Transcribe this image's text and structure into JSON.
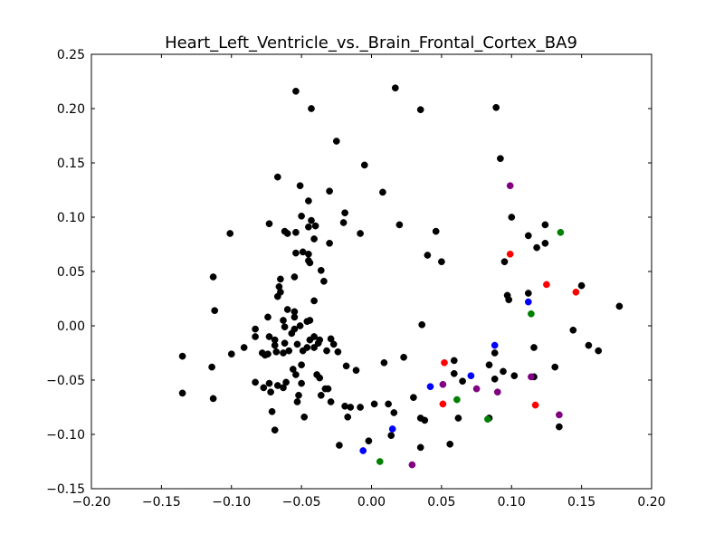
{
  "chart_data": {
    "type": "scatter",
    "title": "Heart_Left_Ventricle_vs._Brain_Frontal_Cortex_BA9",
    "xlabel": "",
    "ylabel": "",
    "xlim": [
      -0.2,
      0.2
    ],
    "ylim": [
      -0.15,
      0.25
    ],
    "x_ticks": [
      "−0.20",
      "−0.15",
      "−0.10",
      "−0.05",
      "0.00",
      "0.05",
      "0.10",
      "0.15",
      "0.20"
    ],
    "x_tick_values": [
      -0.2,
      -0.15,
      -0.1,
      -0.05,
      0.0,
      0.05,
      0.1,
      0.15,
      0.2
    ],
    "y_ticks": [
      "0.25",
      "0.20",
      "0.15",
      "0.10",
      "0.05",
      "0.00",
      "−0.05",
      "−0.10",
      "−0.15"
    ],
    "y_tick_values": [
      0.25,
      0.2,
      0.15,
      0.1,
      0.05,
      0.0,
      -0.05,
      -0.1,
      -0.15
    ],
    "grid": false,
    "series": [
      {
        "color": "#000000",
        "points": [
          [
            -0.054,
            0.216
          ],
          [
            0.017,
            0.219
          ],
          [
            -0.043,
            0.2
          ],
          [
            0.035,
            0.199
          ],
          [
            0.089,
            0.201
          ],
          [
            -0.025,
            0.17
          ],
          [
            0.092,
            0.154
          ],
          [
            -0.005,
            0.148
          ],
          [
            -0.067,
            0.137
          ],
          [
            -0.051,
            0.129
          ],
          [
            -0.03,
            0.124
          ],
          [
            0.008,
            0.123
          ],
          [
            -0.045,
            0.115
          ],
          [
            -0.019,
            0.104
          ],
          [
            -0.05,
            0.101
          ],
          [
            -0.101,
            0.085
          ],
          [
            -0.073,
            0.094
          ],
          [
            -0.043,
            0.097
          ],
          [
            -0.04,
            0.092
          ],
          [
            -0.02,
            0.095
          ],
          [
            0.02,
            0.093
          ],
          [
            0.1,
            0.1
          ],
          [
            0.124,
            0.093
          ],
          [
            -0.062,
            0.087
          ],
          [
            -0.06,
            0.085
          ],
          [
            -0.054,
            0.086
          ],
          [
            -0.045,
            0.091
          ],
          [
            -0.041,
            0.08
          ],
          [
            -0.03,
            0.076
          ],
          [
            -0.008,
            0.085
          ],
          [
            0.046,
            0.087
          ],
          [
            0.112,
            0.083
          ],
          [
            0.118,
            0.072
          ],
          [
            0.124,
            0.076
          ],
          [
            -0.054,
            0.067
          ],
          [
            -0.049,
            0.068
          ],
          [
            -0.045,
            0.066
          ],
          [
            -0.045,
            0.06
          ],
          [
            -0.044,
            0.058
          ],
          [
            0.04,
            0.065
          ],
          [
            0.05,
            0.059
          ],
          [
            0.095,
            0.059
          ],
          [
            -0.036,
            0.051
          ],
          [
            -0.113,
            0.045
          ],
          [
            -0.055,
            0.045
          ],
          [
            -0.065,
            0.043
          ],
          [
            -0.034,
            0.041
          ],
          [
            0.15,
            0.037
          ],
          [
            -0.066,
            0.036
          ],
          [
            -0.067,
            0.027
          ],
          [
            -0.065,
            0.031
          ],
          [
            -0.041,
            0.023
          ],
          [
            0.097,
            0.028
          ],
          [
            0.098,
            0.024
          ],
          [
            0.112,
            0.03
          ],
          [
            -0.112,
            0.014
          ],
          [
            -0.06,
            0.015
          ],
          [
            -0.055,
            0.013
          ],
          [
            0.177,
            0.018
          ],
          [
            -0.074,
            0.008
          ],
          [
            -0.063,
            0.005
          ],
          [
            -0.055,
            0.008
          ],
          [
            -0.046,
            0.004
          ],
          [
            -0.044,
            0.005
          ],
          [
            -0.051,
            0.0
          ],
          [
            0.036,
            0.001
          ],
          [
            -0.083,
            -0.003
          ],
          [
            -0.062,
            -0.001
          ],
          [
            -0.055,
            -0.003
          ],
          [
            -0.083,
            -0.01
          ],
          [
            -0.073,
            -0.01
          ],
          [
            -0.069,
            -0.013
          ],
          [
            -0.057,
            -0.007
          ],
          [
            -0.044,
            -0.013
          ],
          [
            -0.041,
            -0.01
          ],
          [
            -0.037,
            -0.013
          ],
          [
            0.144,
            -0.004
          ],
          [
            -0.069,
            -0.018
          ],
          [
            -0.062,
            -0.016
          ],
          [
            -0.053,
            -0.017
          ],
          [
            -0.041,
            -0.02
          ],
          [
            -0.038,
            -0.016
          ],
          [
            -0.029,
            -0.012
          ],
          [
            -0.027,
            -0.017
          ],
          [
            -0.091,
            -0.02
          ],
          [
            0.116,
            -0.02
          ],
          [
            0.155,
            -0.018
          ],
          [
            0.162,
            -0.023
          ],
          [
            -0.135,
            -0.028
          ],
          [
            -0.1,
            -0.026
          ],
          [
            -0.078,
            -0.025
          ],
          [
            -0.074,
            -0.026
          ],
          [
            -0.068,
            -0.024
          ],
          [
            -0.063,
            -0.025
          ],
          [
            -0.059,
            -0.023
          ],
          [
            -0.049,
            -0.023
          ],
          [
            -0.046,
            -0.02
          ],
          [
            -0.032,
            -0.023
          ],
          [
            -0.024,
            -0.024
          ],
          [
            -0.076,
            -0.027
          ],
          [
            0.023,
            -0.029
          ],
          [
            0.088,
            -0.025
          ],
          [
            -0.114,
            -0.038
          ],
          [
            -0.018,
            -0.037
          ],
          [
            0.009,
            -0.034
          ],
          [
            0.059,
            -0.032
          ],
          [
            0.084,
            -0.036
          ],
          [
            0.094,
            -0.042
          ],
          [
            0.131,
            -0.038
          ],
          [
            -0.011,
            -0.041
          ],
          [
            -0.056,
            -0.04
          ],
          [
            -0.05,
            -0.036
          ],
          [
            -0.039,
            -0.045
          ],
          [
            -0.054,
            -0.045
          ],
          [
            -0.037,
            -0.048
          ],
          [
            0.059,
            -0.044
          ],
          [
            0.065,
            -0.051
          ],
          [
            0.102,
            -0.046
          ],
          [
            0.116,
            -0.047
          ],
          [
            -0.083,
            -0.052
          ],
          [
            -0.067,
            -0.055
          ],
          [
            -0.073,
            -0.053
          ],
          [
            -0.05,
            -0.053
          ],
          [
            -0.063,
            -0.057
          ],
          [
            -0.061,
            -0.052
          ],
          [
            -0.033,
            -0.058
          ],
          [
            -0.031,
            -0.058
          ],
          [
            0.088,
            -0.049
          ],
          [
            -0.072,
            -0.061
          ],
          [
            -0.077,
            -0.057
          ],
          [
            -0.113,
            -0.067
          ],
          [
            -0.135,
            -0.062
          ],
          [
            -0.052,
            -0.064
          ],
          [
            -0.036,
            -0.064
          ],
          [
            -0.029,
            -0.07
          ],
          [
            -0.019,
            -0.074
          ],
          [
            -0.015,
            -0.075
          ],
          [
            -0.008,
            -0.075
          ],
          [
            0.002,
            -0.072
          ],
          [
            0.012,
            -0.072
          ],
          [
            0.03,
            -0.066
          ],
          [
            0.016,
            -0.08
          ],
          [
            -0.053,
            -0.07
          ],
          [
            -0.071,
            -0.079
          ],
          [
            -0.017,
            -0.084
          ],
          [
            -0.048,
            -0.084
          ],
          [
            0.035,
            -0.085
          ],
          [
            0.038,
            -0.087
          ],
          [
            0.062,
            -0.085
          ],
          [
            0.084,
            -0.085
          ],
          [
            0.134,
            -0.093
          ],
          [
            -0.069,
            -0.096
          ],
          [
            0.014,
            -0.101
          ],
          [
            0.056,
            -0.109
          ],
          [
            0.035,
            -0.112
          ],
          [
            -0.002,
            -0.106
          ],
          [
            -0.023,
            -0.11
          ]
        ]
      },
      {
        "color": "#ff0000",
        "points": [
          [
            0.099,
            0.066
          ],
          [
            0.125,
            0.038
          ],
          [
            0.146,
            0.031
          ],
          [
            0.052,
            -0.034
          ],
          [
            0.051,
            -0.072
          ],
          [
            0.117,
            -0.073
          ]
        ]
      },
      {
        "color": "#0000ff",
        "points": [
          [
            0.112,
            0.022
          ],
          [
            0.088,
            -0.018
          ],
          [
            0.071,
            -0.046
          ],
          [
            0.042,
            -0.056
          ],
          [
            0.015,
            -0.095
          ],
          [
            -0.006,
            -0.115
          ]
        ]
      },
      {
        "color": "#008000",
        "points": [
          [
            0.135,
            0.086
          ],
          [
            0.114,
            0.011
          ],
          [
            0.061,
            -0.068
          ],
          [
            0.083,
            -0.086
          ],
          [
            0.006,
            -0.125
          ]
        ]
      },
      {
        "color": "#800080",
        "points": [
          [
            0.099,
            0.129
          ],
          [
            0.114,
            -0.047
          ],
          [
            0.051,
            -0.054
          ],
          [
            0.075,
            -0.058
          ],
          [
            0.09,
            -0.061
          ],
          [
            0.134,
            -0.082
          ],
          [
            0.029,
            -0.128
          ]
        ]
      }
    ]
  }
}
